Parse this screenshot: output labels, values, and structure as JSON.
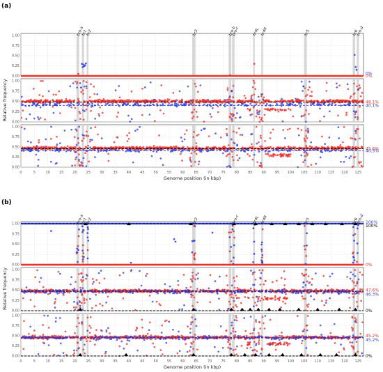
{
  "colors": {
    "red": "#e8322b",
    "blue": "#2f3fe0",
    "region": "#d3d3d3",
    "black": "#000000"
  },
  "chart_data": {
    "type": "scatter",
    "xlabel": "Genome position (in kbp)",
    "ylabel": "Relative frequency",
    "xlim": [
      0,
      127
    ],
    "ylim": [
      0,
      1.05
    ],
    "xticks": [
      0,
      5,
      10,
      15,
      20,
      25,
      30,
      35,
      40,
      45,
      50,
      55,
      60,
      65,
      70,
      75,
      80,
      85,
      90,
      95,
      100,
      105,
      110,
      115,
      120,
      125
    ],
    "yticks": [
      "0.00",
      "0.25",
      "0.50",
      "0.75",
      "1.00"
    ],
    "regions": [
      {
        "label": "bro-a",
        "start": 20.6,
        "end": 21.6
      },
      {
        "label": "hr1",
        "start": 22.6,
        "end": 23.4
      },
      {
        "label": "hr2",
        "start": 24.4,
        "end": 25.0
      },
      {
        "label": "hr3",
        "start": 63.5,
        "end": 64.7
      },
      {
        "label": "bro-b",
        "start": 77.0,
        "end": 78.0
      },
      {
        "label": "bro-c",
        "start": 78.3,
        "end": 79.2
      },
      {
        "label": "hr4L",
        "start": 86.1,
        "end": 86.7
      },
      {
        "label": "hr4R",
        "start": 89.1,
        "end": 89.7
      },
      {
        "label": "hr5",
        "start": 105.0,
        "end": 106.0
      },
      {
        "label": "hr6",
        "start": 123.0,
        "end": 123.9
      },
      {
        "label": "bro-d",
        "start": 124.5,
        "end": 125.3
      }
    ],
    "figures": [
      {
        "label": "(a)",
        "region_labels": [
          "bro-a",
          "hr1",
          "hr2",
          "hr3",
          "bro-b",
          "bro-c",
          "hr4L",
          "hr4R",
          "hr5",
          "hr6",
          "bro-d"
        ],
        "panels": [
          {
            "mode": "zero",
            "annotations": [
              {
                "text": "0%",
                "color": "blue",
                "y": 0.06
              },
              {
                "text": "0%",
                "color": "red",
                "y": 0.0
              }
            ],
            "lines": [
              {
                "y": 0.0,
                "color": "blue"
              },
              {
                "y": 0.0,
                "color": "red"
              }
            ],
            "outliers_blue": [
              [
                22.6,
                0.3
              ],
              [
                23.2,
                0.28
              ],
              [
                23.8,
                0.26
              ],
              [
                22.9,
                0.22
              ],
              [
                24.1,
                0.31
              ],
              [
                23.5,
                0.24
              ],
              [
                123.7,
                0.52
              ],
              [
                124.1,
                0.22
              ],
              [
                124.4,
                0.15
              ]
            ],
            "outliers_red": [
              [
                21.3,
                0.05
              ],
              [
                77.6,
                0.02
              ],
              [
                86.5,
                0.3
              ]
            ]
          },
          {
            "mode": "mixed",
            "annotations": [
              {
                "text": "48.1%",
                "color": "red",
                "y": 0.48
              },
              {
                "text": "40.1%",
                "color": "blue",
                "y": 0.4
              }
            ],
            "lines": [
              {
                "y": 0.481,
                "color": "black"
              },
              {
                "y": 0.401,
                "color": "blue"
              }
            ],
            "red_center": 0.5,
            "blue_center": 0.42,
            "seed": 11
          },
          {
            "mode": "mixed",
            "annotations": [
              {
                "text": "45.6%",
                "color": "red",
                "y": 0.456
              },
              {
                "text": "40.5%",
                "color": "blue",
                "y": 0.405
              }
            ],
            "lines": [
              {
                "y": 0.456,
                "color": "black"
              },
              {
                "y": 0.405,
                "color": "blue"
              }
            ],
            "red_center": 0.47,
            "blue_center": 0.42,
            "seed": 23
          }
        ]
      },
      {
        "label": "(b)",
        "region_labels": [
          "bro-a",
          "hr1",
          "hr2",
          "hr3",
          "bro-c",
          "hr4L",
          "hr4R",
          "hr5",
          "hr6",
          "bro-d"
        ],
        "panels": [
          {
            "mode": "split",
            "annotations": [
              {
                "text": "100%",
                "color": "blue",
                "y": 1.03
              },
              {
                "text": "100%",
                "color": "black",
                "y": 0.95
              },
              {
                "text": "0%",
                "color": "red",
                "y": 0.0
              }
            ],
            "lines": [
              {
                "y": 1.0,
                "color": "black"
              },
              {
                "y": 0.0,
                "color": "red"
              }
            ],
            "triangles": [
              24,
              40,
              63,
              79,
              87,
              93,
              98,
              103,
              108,
              113,
              119,
              124
            ],
            "seed": 37
          },
          {
            "mode": "mixed",
            "annotations": [
              {
                "text": "47.6%",
                "color": "red",
                "y": 0.5
              },
              {
                "text": "46.3%",
                "color": "blue",
                "y": 0.4
              },
              {
                "text": "0%",
                "color": "black",
                "y": 0.0
              }
            ],
            "lines": [
              {
                "y": 0.476,
                "color": "black"
              },
              {
                "y": 0.463,
                "color": "blue"
              },
              {
                "y": 0.0,
                "color": "black"
              }
            ],
            "red_center": 0.48,
            "blue_center": 0.46,
            "seed": 53,
            "triangles": [
              22,
              64,
              78,
              82,
              85,
              88,
              92,
              96,
              103,
              110,
              118,
              124
            ]
          },
          {
            "mode": "mixed",
            "annotations": [
              {
                "text": "45.2%",
                "color": "red",
                "y": 0.5
              },
              {
                "text": "45.2%",
                "color": "blue",
                "y": 0.4
              },
              {
                "text": "0%",
                "color": "black",
                "y": 0.0
              }
            ],
            "lines": [
              {
                "y": 0.452,
                "color": "black"
              },
              {
                "y": 0.452,
                "color": "blue"
              },
              {
                "y": 0.0,
                "color": "black"
              }
            ],
            "red_center": 0.46,
            "blue_center": 0.45,
            "seed": 71,
            "triangles": [
              22,
              39,
              64,
              78,
              83,
              87,
              92,
              97,
              104,
              111,
              117,
              124
            ]
          }
        ]
      }
    ]
  }
}
